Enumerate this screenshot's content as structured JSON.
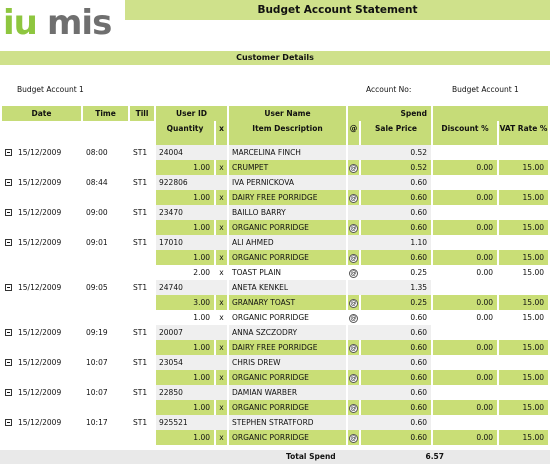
{
  "brand": {
    "name": "iumis"
  },
  "title": "Budget Account Statement",
  "section": "Customer Details",
  "account": {
    "name": "Budget Account 1",
    "no_label": "Account No:",
    "no_value": "Budget Account 1"
  },
  "columns": {
    "date": "Date",
    "time": "Time",
    "till": "Till",
    "user_id": "User ID",
    "user_name": "User Name",
    "spend": "Spend",
    "quantity": "Quantity",
    "x": "x",
    "item_desc": "Item Description",
    "at": "@",
    "sale_price": "Sale Price",
    "discount": "Discount %",
    "vat_rate": "VAT Rate %"
  },
  "transactions": [
    {
      "date": "15/12/2009",
      "time": "08:00",
      "till": "ST1",
      "user_id": "24004",
      "user_name": "MARCELINA FINCH",
      "spend": "0.52",
      "items": [
        {
          "qty": "1.00",
          "desc": "CRUMPET",
          "price": "0.52",
          "discount": "0.00",
          "vat": "15.00",
          "hl": true
        }
      ]
    },
    {
      "date": "15/12/2009",
      "time": "08:44",
      "till": "ST1",
      "user_id": "922806",
      "user_name": "IVA PERNICKOVA",
      "spend": "0.60",
      "items": [
        {
          "qty": "1.00",
          "desc": "DAIRY FREE PORRIDGE",
          "price": "0.60",
          "discount": "0.00",
          "vat": "15.00",
          "hl": true
        }
      ]
    },
    {
      "date": "15/12/2009",
      "time": "09:00",
      "till": "ST1",
      "user_id": "23470",
      "user_name": "BAILLO BARRY",
      "spend": "0.60",
      "items": [
        {
          "qty": "1.00",
          "desc": "ORGANIC PORRIDGE",
          "price": "0.60",
          "discount": "0.00",
          "vat": "15.00",
          "hl": true
        }
      ]
    },
    {
      "date": "15/12/2009",
      "time": "09:01",
      "till": "ST1",
      "user_id": "17010",
      "user_name": "ALI AHMED",
      "spend": "1.10",
      "items": [
        {
          "qty": "1.00",
          "desc": "ORGANIC PORRIDGE",
          "price": "0.60",
          "discount": "0.00",
          "vat": "15.00",
          "hl": true
        },
        {
          "qty": "2.00",
          "desc": "TOAST PLAIN",
          "price": "0.25",
          "discount": "0.00",
          "vat": "15.00",
          "hl": false
        }
      ]
    },
    {
      "date": "15/12/2009",
      "time": "09:05",
      "till": "ST1",
      "user_id": "24740",
      "user_name": "ANETA KENKEL",
      "spend": "1.35",
      "items": [
        {
          "qty": "3.00",
          "desc": "GRANARY TOAST",
          "price": "0.25",
          "discount": "0.00",
          "vat": "15.00",
          "hl": true
        },
        {
          "qty": "1.00",
          "desc": "ORGANIC PORRIDGE",
          "price": "0.60",
          "discount": "0.00",
          "vat": "15.00",
          "hl": false
        }
      ]
    },
    {
      "date": "15/12/2009",
      "time": "09:19",
      "till": "ST1",
      "user_id": "20007",
      "user_name": "ANNA SZCZODRY",
      "spend": "0.60",
      "items": [
        {
          "qty": "1.00",
          "desc": "DAIRY FREE PORRIDGE",
          "price": "0.60",
          "discount": "0.00",
          "vat": "15.00",
          "hl": true
        }
      ]
    },
    {
      "date": "15/12/2009",
      "time": "10:07",
      "till": "ST1",
      "user_id": "23054",
      "user_name": "CHRIS DREW",
      "spend": "0.60",
      "items": [
        {
          "qty": "1.00",
          "desc": "ORGANIC PORRIDGE",
          "price": "0.60",
          "discount": "0.00",
          "vat": "15.00",
          "hl": true
        }
      ]
    },
    {
      "date": "15/12/2009",
      "time": "10:07",
      "till": "ST1",
      "user_id": "22850",
      "user_name": "DAMIAN WARBER",
      "spend": "0.60",
      "items": [
        {
          "qty": "1.00",
          "desc": "ORGANIC PORRIDGE",
          "price": "0.60",
          "discount": "0.00",
          "vat": "15.00",
          "hl": true
        }
      ]
    },
    {
      "date": "15/12/2009",
      "time": "10:17",
      "till": "ST1",
      "user_id": "925521",
      "user_name": "STEPHEN STRATFORD",
      "spend": "0.60",
      "items": [
        {
          "qty": "1.00",
          "desc": "ORGANIC PORRIDGE",
          "price": "0.60",
          "discount": "0.00",
          "vat": "15.00",
          "hl": true
        }
      ]
    }
  ],
  "total": {
    "label": "Total Spend",
    "value": "6.57"
  },
  "icons": {
    "collapse": "collapse-icon",
    "at": "at-sign-icon"
  },
  "colors": {
    "accent": "#cfe18b",
    "row_highlight": "#c9de76",
    "row_light": "#efefef",
    "logo_green": "#8ec63f",
    "logo_gray": "#6f6f6f"
  }
}
